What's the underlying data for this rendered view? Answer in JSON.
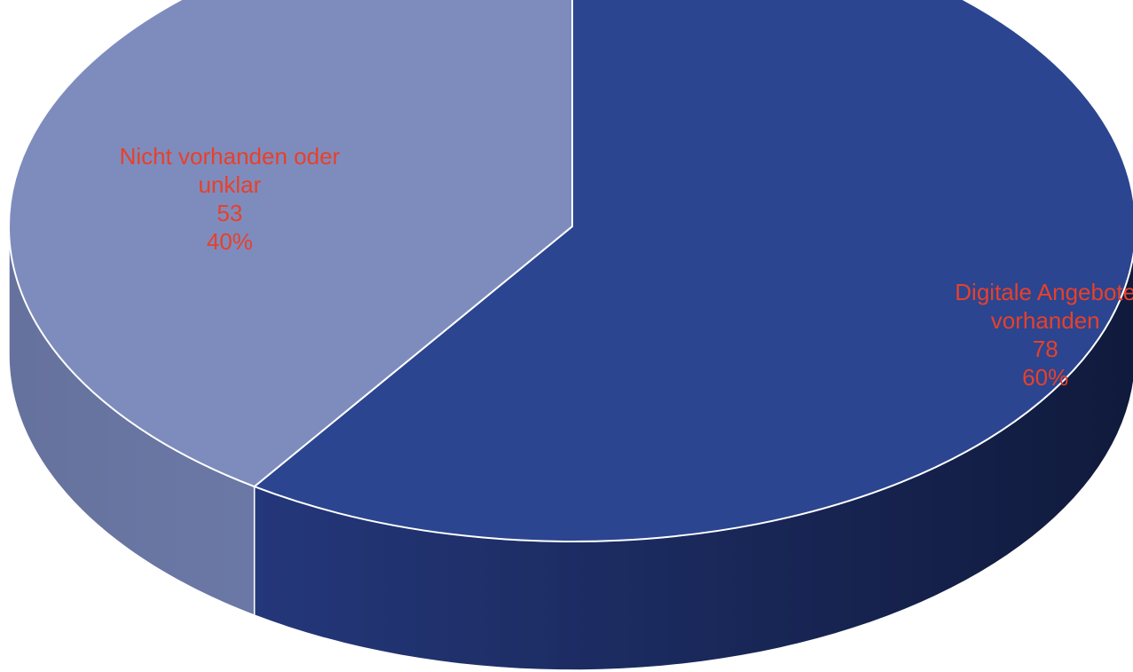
{
  "chart_data": {
    "type": "pie",
    "style": "3d",
    "slices": [
      {
        "name": "Digitale Angebote vorhanden",
        "label_lines": [
          "Digitale Angebote",
          "vorhanden"
        ],
        "value": 78,
        "percent_label": "60%",
        "color": "#2b4590",
        "side_color": "#1a2a5c"
      },
      {
        "name": "Nicht vorhanden oder unklar",
        "label_lines": [
          "Nicht vorhanden oder",
          "unklar"
        ],
        "value": 53,
        "percent_label": "40%",
        "color": "#7e8cbd",
        "side_color": "#5f6b96"
      }
    ],
    "start_angle_deg": 0,
    "direction": "clockwise",
    "label_color": "#e8402a",
    "edge_color": "#ffffff"
  }
}
